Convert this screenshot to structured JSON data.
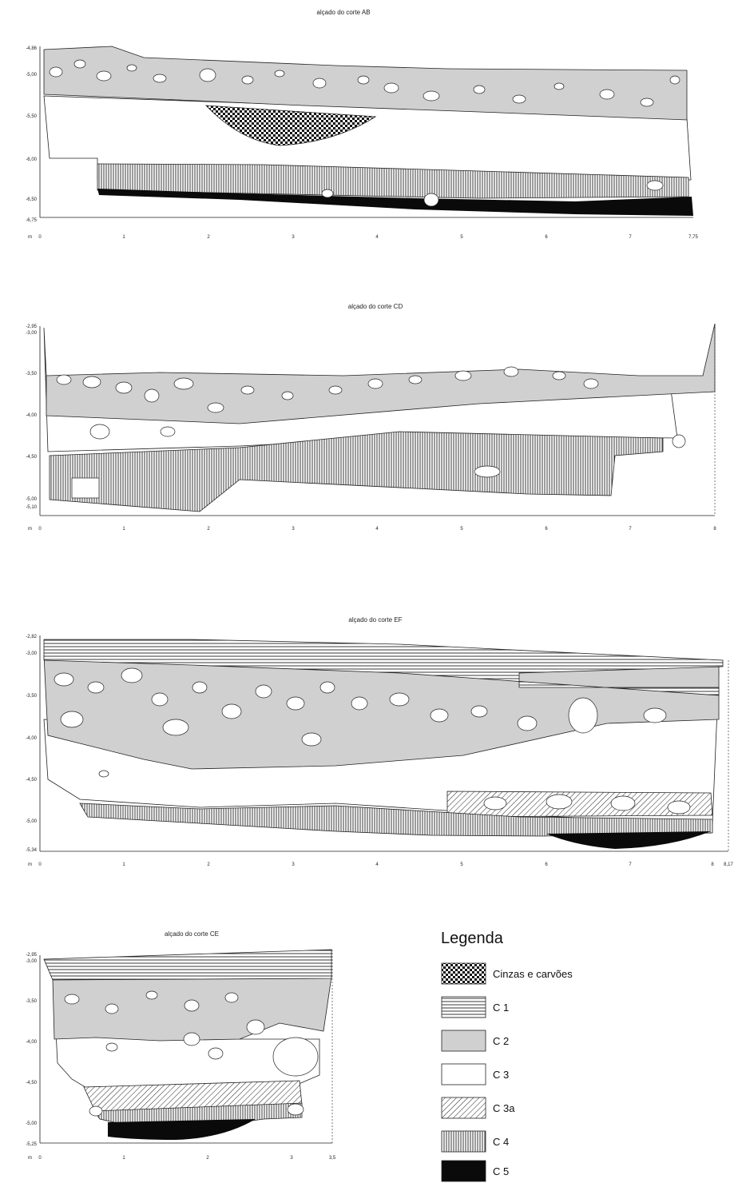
{
  "profiles": [
    {
      "id": "AB",
      "title": "alçado do corte AB",
      "y_labels": [
        "-4,86",
        "-5,00",
        "-5,50",
        "-6,00",
        "-6,50",
        "-6,75"
      ],
      "x_labels": [
        "0",
        "1",
        "2",
        "3",
        "4",
        "5",
        "6",
        "7",
        "7,75"
      ],
      "unit": "m"
    },
    {
      "id": "CD",
      "title": "alçado do corte CD",
      "y_labels": [
        "-2,95",
        "-3,00",
        "-3,50",
        "-4,00",
        "-4,50",
        "-5,00",
        "-5,10"
      ],
      "x_labels": [
        "0",
        "1",
        "2",
        "3",
        "4",
        "5",
        "6",
        "7",
        "8"
      ],
      "unit": "m"
    },
    {
      "id": "EF",
      "title": "alçado do corte EF",
      "y_labels": [
        "-2,82",
        "-3,00",
        "-3,50",
        "-4,00",
        "-4,50",
        "-5,00",
        "-5,34"
      ],
      "x_labels": [
        "0",
        "1",
        "2",
        "3",
        "4",
        "5",
        "6",
        "7",
        "8",
        "8,17"
      ],
      "unit": "m"
    },
    {
      "id": "CE",
      "title": "alçado do corte CE",
      "y_labels": [
        "-2,95",
        "-3,00",
        "-3,50",
        "-4,00",
        "-4,50",
        "-5,00",
        "-5,25"
      ],
      "x_labels": [
        "0",
        "1",
        "2",
        "3",
        "3,5"
      ],
      "unit": "m"
    }
  ],
  "legend": {
    "title": "Legenda",
    "items": [
      {
        "label": "Cinzas e carvões",
        "pattern": "crosshatch"
      },
      {
        "label": "C 1",
        "pattern": "horizontal"
      },
      {
        "label": "C 2",
        "pattern": "gray"
      },
      {
        "label": "C 3",
        "pattern": "white"
      },
      {
        "label": "C 3a",
        "pattern": "diagonal"
      },
      {
        "label": "C 4",
        "pattern": "vertical"
      },
      {
        "label": "C 5",
        "pattern": "black"
      }
    ]
  },
  "colors": {
    "gray": "#d0d0d0",
    "line": "#222222",
    "black": "#0a0a0a"
  }
}
